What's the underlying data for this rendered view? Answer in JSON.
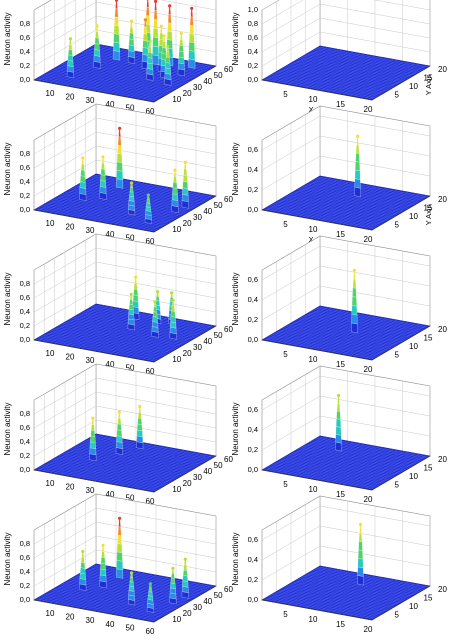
{
  "colors": {
    "surface": "#1f2fd6",
    "mesh": "#5c6cf0",
    "box": "#888888",
    "text": "#000000",
    "colormap": [
      "#1f2fd6",
      "#2a8ce8",
      "#27c9c0",
      "#4fd36a",
      "#b8e03a",
      "#f2e03a",
      "#f28a2a",
      "#e83a2a"
    ]
  },
  "chart_data": [
    {
      "type": "surface3d",
      "panel": "row1-left",
      "zlabel": "Neuron activity",
      "x_ticks": [
        "10",
        "20",
        "30",
        "40",
        "50",
        "60"
      ],
      "y_ticks": [
        "10",
        "20",
        "30",
        "40",
        "50",
        "60"
      ],
      "z_ticks": [
        "0,0",
        "0,2",
        "0,4",
        "0,6",
        "0,8"
      ],
      "xlim": [
        0,
        60
      ],
      "ylim": [
        0,
        60
      ],
      "zlim": [
        0,
        1.0
      ],
      "peaks": [
        {
          "x": 18,
          "y": 45,
          "z": 0.85
        },
        {
          "x": 16,
          "y": 30,
          "z": 0.6
        },
        {
          "x": 12,
          "y": 12,
          "z": 0.55
        },
        {
          "x": 29,
          "y": 54,
          "z": 0.85
        },
        {
          "x": 26,
          "y": 44,
          "z": 0.6
        },
        {
          "x": 36,
          "y": 48,
          "z": 0.9
        },
        {
          "x": 42,
          "y": 50,
          "z": 0.85
        },
        {
          "x": 43,
          "y": 40,
          "z": 0.65
        },
        {
          "x": 44,
          "y": 27,
          "z": 0.55
        },
        {
          "x": 52,
          "y": 52,
          "z": 0.85
        },
        {
          "x": 53,
          "y": 40,
          "z": 0.6
        },
        {
          "x": 54,
          "y": 25,
          "z": 0.55
        },
        {
          "x": 35,
          "y": 40,
          "z": 0.7
        },
        {
          "x": 48,
          "y": 33,
          "z": 0.6
        }
      ]
    },
    {
      "type": "surface3d",
      "panel": "row1-right",
      "zlabel": "Neuron activity",
      "xlabel": "X Axis",
      "ylabel": "Y Axis",
      "x_ticks": [
        "5",
        "10",
        "15",
        "20"
      ],
      "y_ticks": [
        "5",
        "10",
        "15",
        "20"
      ],
      "z_ticks": [
        "0,0",
        "0,2",
        "0,4",
        "0,6",
        "0,8",
        "1,0"
      ],
      "xlim": [
        0,
        20
      ],
      "ylim": [
        0,
        20
      ],
      "zlim": [
        0,
        1.0
      ],
      "peaks": []
    },
    {
      "type": "surface3d",
      "panel": "row2-left",
      "zlabel": "Neuron activity",
      "x_ticks": [
        "10",
        "20",
        "30",
        "40",
        "50",
        "60"
      ],
      "y_ticks": [
        "10",
        "20",
        "30",
        "40",
        "50",
        "60"
      ],
      "z_ticks": [
        "0,0",
        "0,2",
        "0,4",
        "0,6",
        "0,8"
      ],
      "xlim": [
        0,
        60
      ],
      "ylim": [
        0,
        60
      ],
      "zlim": [
        0,
        1.0
      ],
      "peaks": [
        {
          "x": 12,
          "y": 24,
          "z": 0.6
        },
        {
          "x": 19,
          "y": 30,
          "z": 0.6
        },
        {
          "x": 18,
          "y": 48,
          "z": 0.85
        },
        {
          "x": 40,
          "y": 17,
          "z": 0.45
        },
        {
          "x": 52,
          "y": 10,
          "z": 0.4
        },
        {
          "x": 55,
          "y": 30,
          "z": 0.6
        },
        {
          "x": 56,
          "y": 38,
          "z": 0.65
        }
      ]
    },
    {
      "type": "surface3d",
      "panel": "row2-right",
      "zlabel": "Neuron activity",
      "xlabel": "X Axis",
      "ylabel": "Y Axis",
      "x_ticks": [
        "5",
        "10",
        "15",
        "20"
      ],
      "y_ticks": [
        "5",
        "10",
        "15",
        "20"
      ],
      "z_ticks": [
        "0,0",
        "0,2",
        "0,4",
        "0,6"
      ],
      "xlim": [
        0,
        20
      ],
      "ylim": [
        0,
        20
      ],
      "zlim": [
        0,
        0.7
      ],
      "peaks": [
        {
          "x": 10,
          "y": 14,
          "z": 0.6
        }
      ]
    },
    {
      "type": "surface3d",
      "panel": "row3-left",
      "zlabel": "Neuron activity",
      "x_ticks": [
        "10",
        "20",
        "30",
        "40",
        "50",
        "60"
      ],
      "y_ticks": [
        "10",
        "20",
        "30",
        "40",
        "50",
        "60"
      ],
      "z_ticks": [
        "0,0",
        "0,2",
        "0,4",
        "0,6",
        "0,8"
      ],
      "xlim": [
        0,
        60
      ],
      "ylim": [
        0,
        60
      ],
      "zlim": [
        0,
        1.0
      ],
      "peaks": [
        {
          "x": 25,
          "y": 50,
          "z": 0.6
        },
        {
          "x": 30,
          "y": 36,
          "z": 0.5
        },
        {
          "x": 36,
          "y": 50,
          "z": 0.45
        },
        {
          "x": 42,
          "y": 52,
          "z": 0.45
        },
        {
          "x": 44,
          "y": 32,
          "z": 0.5
        },
        {
          "x": 52,
          "y": 34,
          "z": 0.55
        }
      ]
    },
    {
      "type": "surface3d",
      "panel": "row3-right",
      "zlabel": "Neuron activity",
      "x_ticks": [
        "5",
        "10",
        "15",
        "20"
      ],
      "y_ticks": [
        "5",
        "10",
        "15",
        "20"
      ],
      "z_ticks": [
        "0,0",
        "0,2",
        "0,4",
        "0,6"
      ],
      "xlim": [
        0,
        20
      ],
      "ylim": [
        0,
        20
      ],
      "zlim": [
        0,
        0.7
      ],
      "peaks": [
        {
          "x": 11,
          "y": 11,
          "z": 0.62
        }
      ]
    },
    {
      "type": "surface3d",
      "panel": "row4-left",
      "zlabel": "Neuron activity",
      "x_ticks": [
        "10",
        "20",
        "30",
        "40",
        "50",
        "60"
      ],
      "y_ticks": [
        "10",
        "20",
        "30",
        "40",
        "50",
        "60"
      ],
      "z_ticks": [
        "0,0",
        "0,2",
        "0,4",
        "0,6",
        "0,8"
      ],
      "xlim": [
        0,
        60
      ],
      "ylim": [
        0,
        60
      ],
      "zlim": [
        0,
        1.0
      ],
      "peaks": [
        {
          "x": 16,
          "y": 26,
          "z": 0.6
        },
        {
          "x": 22,
          "y": 40,
          "z": 0.6
        },
        {
          "x": 26,
          "y": 52,
          "z": 0.6
        }
      ]
    },
    {
      "type": "surface3d",
      "panel": "row4-right",
      "zlabel": "Neuron activity",
      "x_ticks": [
        "5",
        "10",
        "15",
        "20"
      ],
      "y_ticks": [
        "5",
        "10",
        "15",
        "20"
      ],
      "z_ticks": [
        "0,0",
        "0,2",
        "0,4",
        "0,6"
      ],
      "xlim": [
        0,
        20
      ],
      "ylim": [
        0,
        20
      ],
      "zlim": [
        0,
        0.7
      ],
      "peaks": [
        {
          "x": 6,
          "y": 15,
          "z": 0.55
        }
      ]
    },
    {
      "type": "surface3d",
      "panel": "row5-left",
      "zlabel": "Neuron activity",
      "x_ticks": [
        "10",
        "20",
        "30",
        "40",
        "50",
        "60"
      ],
      "y_ticks": [
        "10",
        "20",
        "30",
        "40",
        "50",
        "60"
      ],
      "z_ticks": [
        "0,0",
        "0,2",
        "0,4",
        "0,6",
        "0,8"
      ],
      "xlim": [
        0,
        60
      ],
      "ylim": [
        0,
        60
      ],
      "zlim": [
        0,
        1.0
      ],
      "peaks": [
        {
          "x": 12,
          "y": 24,
          "z": 0.55
        },
        {
          "x": 18,
          "y": 32,
          "z": 0.6
        },
        {
          "x": 18,
          "y": 48,
          "z": 0.85
        },
        {
          "x": 40,
          "y": 17,
          "z": 0.45
        },
        {
          "x": 52,
          "y": 12,
          "z": 0.4
        },
        {
          "x": 55,
          "y": 28,
          "z": 0.5
        },
        {
          "x": 56,
          "y": 38,
          "z": 0.55
        }
      ]
    },
    {
      "type": "surface3d",
      "panel": "row5-right",
      "zlabel": "Neuron activity",
      "x_ticks": [
        "5",
        "10",
        "15",
        "20"
      ],
      "y_ticks": [
        "5",
        "10",
        "15",
        "20"
      ],
      "z_ticks": [
        "0,0",
        "0,2",
        "0,4",
        "0,6"
      ],
      "xlim": [
        0,
        20
      ],
      "ylim": [
        0,
        20
      ],
      "zlim": [
        0,
        0.7
      ],
      "peaks": [
        {
          "x": 10,
          "y": 15,
          "z": 0.6
        }
      ]
    }
  ]
}
